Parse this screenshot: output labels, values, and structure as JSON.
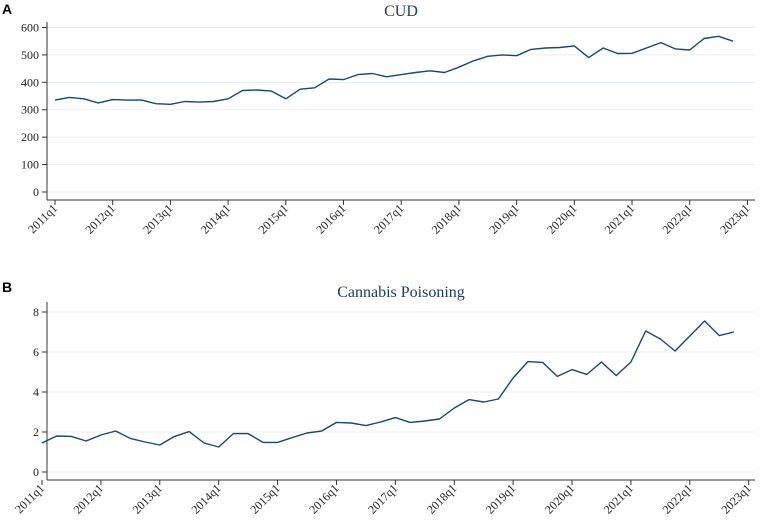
{
  "colors": {
    "series": "#1a476f"
  },
  "chart_data": [
    {
      "panel_letter": "A",
      "type": "line",
      "title": "CUD",
      "x_tick_labels": [
        "2011q1",
        "2012q1",
        "2013q1",
        "2014q1",
        "2015q1",
        "2016q1",
        "2017q1",
        "2018q1",
        "2019q1",
        "2020q1",
        "2021q1",
        "2022q1",
        "2023q1"
      ],
      "y_ticks": [
        0,
        100,
        200,
        300,
        400,
        500,
        600
      ],
      "ylim": [
        0,
        620
      ],
      "grid": true,
      "series": [
        {
          "values": [
            335,
            345,
            340,
            325,
            337,
            335,
            335,
            322,
            320,
            330,
            328,
            330,
            340,
            370,
            372,
            368,
            340,
            375,
            380,
            412,
            410,
            428,
            432,
            420,
            428,
            436,
            442,
            436,
            455,
            478,
            495,
            500,
            497,
            520,
            525,
            527,
            533,
            490,
            525,
            505,
            506,
            525,
            545,
            522,
            518,
            560,
            568,
            550
          ]
        }
      ]
    },
    {
      "panel_letter": "B",
      "type": "line",
      "title": "Cannabis Poisoning",
      "x_tick_labels": [
        "2011q1",
        "2012q1",
        "2013q1",
        "2014q1",
        "2015q1",
        "2016q1",
        "2017q1",
        "2018q1",
        "2019q1",
        "2020q1",
        "2021q1",
        "2022q1",
        "2023q1"
      ],
      "y_ticks": [
        0,
        2,
        4,
        6,
        8
      ],
      "ylim": [
        0,
        8.5
      ],
      "grid": true,
      "series": [
        {
          "values": [
            1.45,
            1.8,
            1.78,
            1.55,
            1.85,
            2.05,
            1.68,
            1.5,
            1.35,
            1.78,
            2.02,
            1.45,
            1.25,
            1.92,
            1.92,
            1.48,
            1.48,
            1.72,
            1.95,
            2.05,
            2.48,
            2.45,
            2.32,
            2.5,
            2.72,
            2.48,
            2.55,
            2.65,
            3.2,
            3.62,
            3.5,
            3.65,
            4.7,
            5.52,
            5.48,
            4.78,
            5.12,
            4.88,
            5.5,
            4.82,
            5.5,
            7.05,
            6.65,
            6.05,
            6.8,
            7.55,
            6.82,
            7.0
          ]
        }
      ]
    }
  ]
}
